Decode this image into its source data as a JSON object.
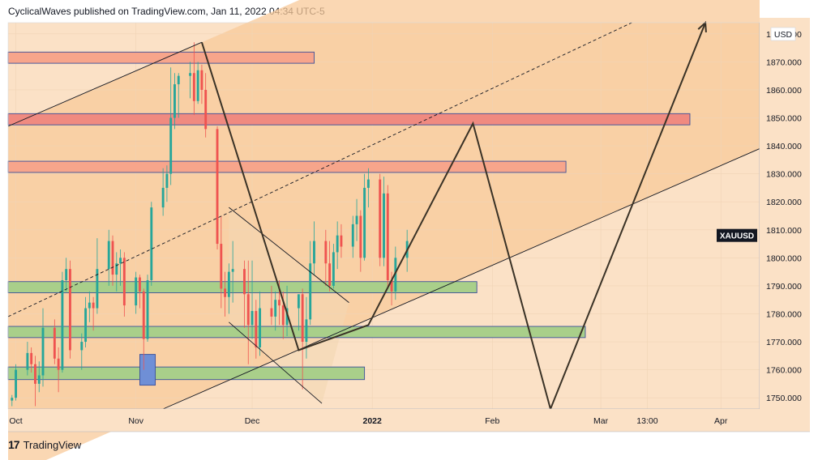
{
  "header": {
    "publisher_line": "CyclicalWaves published on TradingView.com, Jan 11, 2022 04:34 UTC-5"
  },
  "footer": {
    "brand": "TradingView",
    "logo_glyph": "17"
  },
  "symbol_tag": "XAUUSD",
  "currency": "USD",
  "chart_data": {
    "type": "candlestick",
    "symbol": "XAUUSD",
    "currency": "USD",
    "y_axis": {
      "ticks": [
        1750,
        1760,
        1770,
        1780,
        1790,
        1800,
        1810,
        1820,
        1830,
        1840,
        1850,
        1860,
        1870,
        1880
      ],
      "tick_labels": [
        "1750.000",
        "1760.000",
        "1770.000",
        "1780.000",
        "1790.000",
        "1800.000",
        "1810.000",
        "1820.000",
        "1830.000",
        "1840.000",
        "1850.000",
        "1860.000",
        "1870.000",
        "1880.000"
      ],
      "range": [
        1746,
        1884
      ]
    },
    "x_axis": {
      "ticks": [
        "2021-10-01",
        "2021-11-01",
        "2021-12-01",
        "2022-01-01",
        "2022-02-01",
        "2022-03-01",
        "2022-03-13",
        "2022-04-01"
      ],
      "tick_labels": [
        "Oct",
        "Nov",
        "Dec",
        "2022",
        "Feb",
        "Mar",
        "13:00",
        "Apr"
      ],
      "range": [
        "2021-09-29",
        "2022-04-11"
      ]
    },
    "zones": [
      {
        "kind": "resistance",
        "start": "2021-09-29",
        "end": "2021-12-17",
        "top": 1873.5,
        "bottom": 1869.5,
        "color": "#f7a58b"
      },
      {
        "kind": "resistance",
        "start": "2021-09-29",
        "end": "2022-03-24",
        "top": 1851.5,
        "bottom": 1847.5,
        "color": "#f08a80"
      },
      {
        "kind": "resistance",
        "start": "2021-09-29",
        "end": "2022-02-20",
        "top": 1834.5,
        "bottom": 1830.5,
        "color": "#f7a58b"
      },
      {
        "kind": "support",
        "start": "2021-09-29",
        "end": "2022-01-28",
        "top": 1791.5,
        "bottom": 1787.5,
        "color": "#a9cf8a"
      },
      {
        "kind": "support",
        "start": "2021-09-29",
        "end": "2022-02-25",
        "top": 1775.5,
        "bottom": 1771.5,
        "color": "#a9cf8a"
      },
      {
        "kind": "support",
        "start": "2021-09-29",
        "end": "2021-12-30",
        "top": 1761.0,
        "bottom": 1756.5,
        "color": "#a9cf8a"
      },
      {
        "kind": "box",
        "start": "2021-11-02",
        "end": "2021-11-06",
        "top": 1765.5,
        "bottom": 1754.5,
        "color": "#6f8fd6"
      }
    ],
    "candles": [
      [
        "2021-09-30",
        1749,
        1751,
        1747,
        1750
      ],
      [
        "2021-10-01",
        1750,
        1762,
        1749,
        1760
      ],
      [
        "2021-10-04",
        1760,
        1770,
        1758,
        1766
      ],
      [
        "2021-10-05",
        1766,
        1768,
        1759,
        1762
      ],
      [
        "2021-10-06",
        1762,
        1765,
        1747,
        1755
      ],
      [
        "2021-10-07",
        1755,
        1763,
        1752,
        1758
      ],
      [
        "2021-10-08",
        1758,
        1782,
        1754,
        1775
      ],
      [
        "2021-10-11",
        1775,
        1778,
        1762,
        1764
      ],
      [
        "2021-10-12",
        1764,
        1768,
        1752,
        1760
      ],
      [
        "2021-10-13",
        1760,
        1795,
        1759,
        1792
      ],
      [
        "2021-10-14",
        1792,
        1800,
        1788,
        1796
      ],
      [
        "2021-10-15",
        1796,
        1799,
        1764,
        1767
      ],
      [
        "2021-10-18",
        1767,
        1773,
        1760,
        1770
      ],
      [
        "2021-10-19",
        1770,
        1786,
        1768,
        1782
      ],
      [
        "2021-10-20",
        1782,
        1788,
        1777,
        1784
      ],
      [
        "2021-10-21",
        1784,
        1786,
        1774,
        1782
      ],
      [
        "2021-10-22",
        1782,
        1807,
        1780,
        1796
      ],
      [
        "2021-10-25",
        1796,
        1810,
        1790,
        1806
      ],
      [
        "2021-10-26",
        1806,
        1808,
        1790,
        1794
      ],
      [
        "2021-10-27",
        1794,
        1802,
        1788,
        1798
      ],
      [
        "2021-10-28",
        1798,
        1803,
        1790,
        1800
      ],
      [
        "2021-10-29",
        1800,
        1802,
        1779,
        1783
      ],
      [
        "2021-11-01",
        1783,
        1795,
        1780,
        1793
      ],
      [
        "2021-11-02",
        1793,
        1794,
        1782,
        1788
      ],
      [
        "2021-11-03",
        1788,
        1789,
        1760,
        1771
      ],
      [
        "2021-11-04",
        1771,
        1794,
        1770,
        1792
      ],
      [
        "2021-11-05",
        1792,
        1820,
        1790,
        1818
      ],
      [
        "2021-11-08",
        1818,
        1832,
        1815,
        1825
      ],
      [
        "2021-11-09",
        1825,
        1833,
        1820,
        1830
      ],
      [
        "2021-11-10",
        1830,
        1868,
        1826,
        1850
      ],
      [
        "2021-11-11",
        1850,
        1866,
        1846,
        1862
      ],
      [
        "2021-11-12",
        1862,
        1866,
        1850,
        1865
      ],
      [
        "2021-11-15",
        1865,
        1870,
        1857,
        1866
      ],
      [
        "2021-11-16",
        1866,
        1877,
        1851,
        1856
      ],
      [
        "2021-11-17",
        1856,
        1870,
        1855,
        1867
      ],
      [
        "2021-11-18",
        1867,
        1869,
        1855,
        1860
      ],
      [
        "2021-11-19",
        1860,
        1866,
        1843,
        1846
      ],
      [
        "2021-11-22",
        1846,
        1847,
        1803,
        1805
      ],
      [
        "2021-11-23",
        1805,
        1815,
        1782,
        1789
      ],
      [
        "2021-11-24",
        1789,
        1795,
        1779,
        1786
      ],
      [
        "2021-11-25",
        1786,
        1798,
        1780,
        1795
      ],
      [
        "2021-11-26",
        1795,
        1806,
        1784,
        1796
      ],
      [
        "2021-11-29",
        1796,
        1799,
        1775,
        1787
      ],
      [
        "2021-11-30",
        1787,
        1799,
        1762,
        1776
      ],
      [
        "2021-12-01",
        1776,
        1799,
        1771,
        1781
      ],
      [
        "2021-12-02",
        1781,
        1785,
        1764,
        1768
      ],
      [
        "2021-12-03",
        1768,
        1788,
        1765,
        1782
      ],
      [
        "2021-12-06",
        1782,
        1790,
        1776,
        1779
      ],
      [
        "2021-12-07",
        1779,
        1788,
        1774,
        1785
      ],
      [
        "2021-12-08",
        1785,
        1792,
        1776,
        1783
      ],
      [
        "2021-12-09",
        1783,
        1788,
        1771,
        1776
      ],
      [
        "2021-12-10",
        1776,
        1790,
        1772,
        1782
      ],
      [
        "2021-12-13",
        1782,
        1786,
        1774,
        1787
      ],
      [
        "2021-12-14",
        1787,
        1789,
        1753,
        1770
      ],
      [
        "2021-12-15",
        1770,
        1786,
        1764,
        1778
      ],
      [
        "2021-12-16",
        1778,
        1806,
        1776,
        1798
      ],
      [
        "2021-12-17",
        1798,
        1813,
        1794,
        1806
      ],
      [
        "2021-12-20",
        1806,
        1810,
        1790,
        1798
      ],
      [
        "2021-12-21",
        1798,
        1806,
        1788,
        1790
      ],
      [
        "2021-12-22",
        1790,
        1805,
        1789,
        1802
      ],
      [
        "2021-12-23",
        1802,
        1813,
        1796,
        1808
      ],
      [
        "2021-12-24",
        1808,
        1812,
        1800,
        1804
      ],
      [
        "2021-12-27",
        1804,
        1815,
        1800,
        1812
      ],
      [
        "2021-12-28",
        1812,
        1821,
        1806,
        1815
      ],
      [
        "2021-12-29",
        1815,
        1817,
        1795,
        1800
      ],
      [
        "2021-12-30",
        1800,
        1830,
        1799,
        1825
      ],
      [
        "2021-12-31",
        1825,
        1832,
        1818,
        1828
      ],
      [
        "2022-01-03",
        1828,
        1830,
        1797,
        1800
      ],
      [
        "2022-01-04",
        1800,
        1829,
        1797,
        1823
      ],
      [
        "2022-01-05",
        1823,
        1826,
        1789,
        1792
      ],
      [
        "2022-01-06",
        1792,
        1795,
        1783,
        1788
      ],
      [
        "2022-01-07",
        1788,
        1804,
        1785,
        1800
      ],
      [
        "2022-01-10",
        1800,
        1810,
        1795,
        1806
      ]
    ],
    "annotations": {
      "channel": {
        "kind": "ascending-channel",
        "upper": [
          [
            "2021-09-29",
            1847
          ],
          [
            "2021-11-18",
            1877
          ]
        ],
        "lower": [
          [
            "2021-11-08",
            1746
          ],
          [
            "2022-04-11",
            1839
          ]
        ],
        "midline": [
          [
            "2021-09-29",
            1779
          ],
          [
            "2022-03-09",
            1884
          ]
        ]
      },
      "falling_wedge": {
        "upper": [
          [
            "2021-11-25",
            1818
          ],
          [
            "2021-12-26",
            1784
          ]
        ],
        "lower": [
          [
            "2021-11-25",
            1777
          ],
          [
            "2021-12-19",
            1748
          ]
        ]
      },
      "projected_path": [
        [
          "2021-11-18",
          1877
        ],
        [
          "2021-12-13",
          1767
        ],
        [
          "2021-12-31",
          1776
        ],
        [
          "2022-01-27",
          1848
        ],
        [
          "2022-02-16",
          1746
        ],
        [
          "2022-03-28",
          1884
        ]
      ]
    }
  }
}
